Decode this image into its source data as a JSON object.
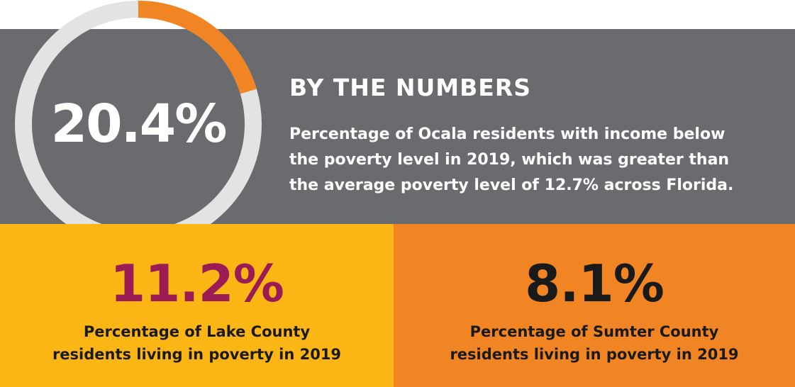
{
  "donut": {
    "value_label": "20.4%",
    "fraction": 0.204,
    "track_color": "#e3e3e4",
    "fill_color": "#f28523"
  },
  "header": {
    "title": "BY THE NUMBERS",
    "description": [
      "Percentage of Ocala residents with income below",
      "the poverty level in 2019, which was greater than",
      "the average poverty level of 12.7% across Florida."
    ]
  },
  "lake": {
    "value": "11.2%",
    "caption": [
      "Percentage of Lake County",
      "residents living in poverty in 2019"
    ]
  },
  "sumter": {
    "value": "8.1%",
    "caption": [
      "Percentage of Sumter County",
      "residents living in poverty in 2019"
    ]
  },
  "colors": {
    "band": "#6a6b6e",
    "lake_bg": "#fbb616",
    "sumter_bg": "#f28523",
    "lake_value": "#9b1b55"
  }
}
